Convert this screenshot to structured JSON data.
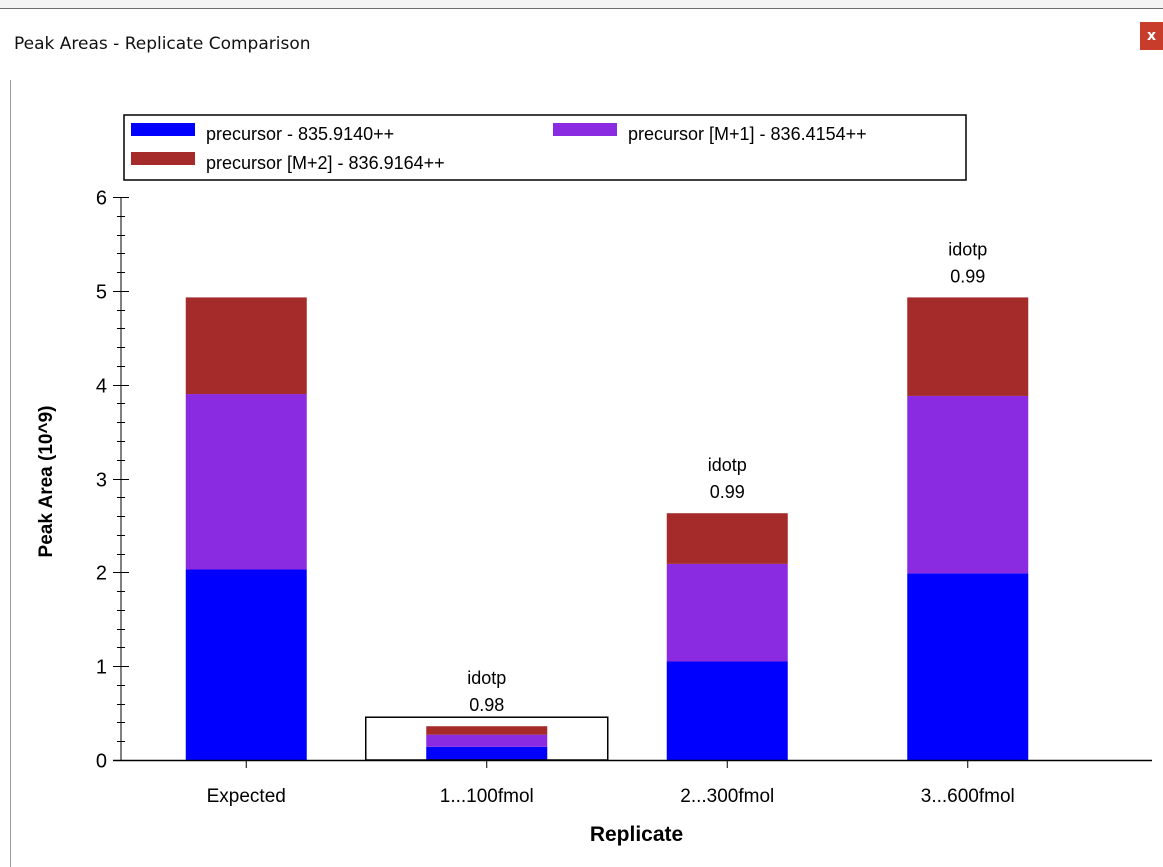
{
  "window": {
    "title": "Peak Areas - Replicate Comparison",
    "close_label": "x"
  },
  "chart_data": {
    "type": "bar",
    "stacked": true,
    "title": "",
    "xlabel": "Replicate",
    "ylabel": "Peak Area (10^9)",
    "ylim": [
      0,
      6
    ],
    "yticks": [
      "0",
      "1",
      "2",
      "3",
      "4",
      "5",
      "6"
    ],
    "grid": false,
    "legend_position": "top-left",
    "categories": [
      "Expected",
      "1...100fmol",
      "2...300fmol",
      "3...600fmol"
    ],
    "selected_category": "1...100fmol",
    "series": [
      {
        "name": "precursor - 835.9140++",
        "color": "#0000ff",
        "values": [
          2.03,
          0.14,
          1.05,
          1.99
        ]
      },
      {
        "name": "precursor [M+1] - 836.4154++",
        "color": "#8a2be2",
        "values": [
          1.87,
          0.13,
          1.04,
          1.89
        ]
      },
      {
        "name": "precursor [M+2] - 836.9164++",
        "color": "#a52a2a",
        "values": [
          1.03,
          0.09,
          0.54,
          1.05
        ]
      }
    ],
    "bar_annotations": [
      null,
      {
        "label": "idotp",
        "value": "0.98"
      },
      {
        "label": "idotp",
        "value": "0.99"
      },
      {
        "label": "idotp",
        "value": "0.99"
      }
    ]
  }
}
